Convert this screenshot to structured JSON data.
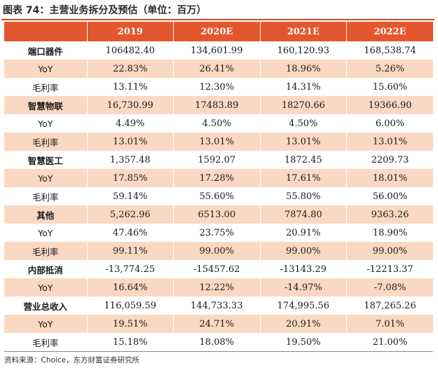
{
  "title": "图表 74：主营业务拆分及预估（单位：百万）",
  "header": [
    "",
    "2019",
    "2020E",
    "2021E",
    "2022E"
  ],
  "rows": [
    {
      "label": "端口器件",
      "bold": true,
      "values": [
        "106482.40",
        "134,601.99",
        "160,120.93",
        "168,538.74"
      ]
    },
    {
      "label": "YoY",
      "bold": false,
      "values": [
        "22.83%",
        "26.41%",
        "18.96%",
        "5.26%"
      ]
    },
    {
      "label": "毛利率",
      "bold": false,
      "values": [
        "13.11%",
        "12.30%",
        "14.31%",
        "15.60%"
      ]
    },
    {
      "label": "智慧物联",
      "bold": true,
      "values": [
        "16,730.99",
        "17483.89",
        "18270.66",
        "19366.90"
      ]
    },
    {
      "label": "YoY",
      "bold": false,
      "values": [
        "4.49%",
        "4.50%",
        "4.50%",
        "6.00%"
      ]
    },
    {
      "label": "毛利率",
      "bold": false,
      "values": [
        "13.01%",
        "13.01%",
        "13.01%",
        "13.01%"
      ]
    },
    {
      "label": "智慧医工",
      "bold": true,
      "values": [
        "1,357.48",
        "1592.07",
        "1872.45",
        "2209.73"
      ]
    },
    {
      "label": "YoY",
      "bold": false,
      "values": [
        "17.85%",
        "17.28%",
        "17.61%",
        "18.01%"
      ]
    },
    {
      "label": "毛利率",
      "bold": false,
      "values": [
        "59.14%",
        "55.60%",
        "55.80%",
        "56.00%"
      ]
    },
    {
      "label": "其他",
      "bold": true,
      "values": [
        "5,262.96",
        "6513.00",
        "7874.80",
        "9363.26"
      ]
    },
    {
      "label": "YoY",
      "bold": false,
      "values": [
        "47.46%",
        "23.75%",
        "20.91%",
        "18.90%"
      ]
    },
    {
      "label": "毛利率",
      "bold": false,
      "values": [
        "99.11%",
        "99.00%",
        "99.00%",
        "99.00%"
      ]
    },
    {
      "label": "内部抵消",
      "bold": true,
      "values": [
        "-13,774.25",
        "-15457.62",
        "-13143.29",
        "-12213.37"
      ]
    },
    {
      "label": "YoY",
      "bold": false,
      "values": [
        "16.64%",
        "12.22%",
        "-14.97%",
        "-7.08%"
      ]
    },
    {
      "label": "营业总收入",
      "bold": true,
      "values": [
        "116,059.59",
        "144,733.33",
        "174,995.56",
        "187,265.26"
      ]
    },
    {
      "label": "YoY",
      "bold": false,
      "values": [
        "19.51%",
        "24.71%",
        "20.91%",
        "7.01%"
      ]
    },
    {
      "label": "毛利率",
      "bold": false,
      "values": [
        "15.18%",
        "18.08%",
        "19.50%",
        "21.00%"
      ]
    }
  ],
  "source": "资料来源：Choice，东方财富证券研究所",
  "colors": {
    "header_bg": "#e4572e",
    "stripe": "#fbd8c2",
    "rule": "#c8501e"
  }
}
